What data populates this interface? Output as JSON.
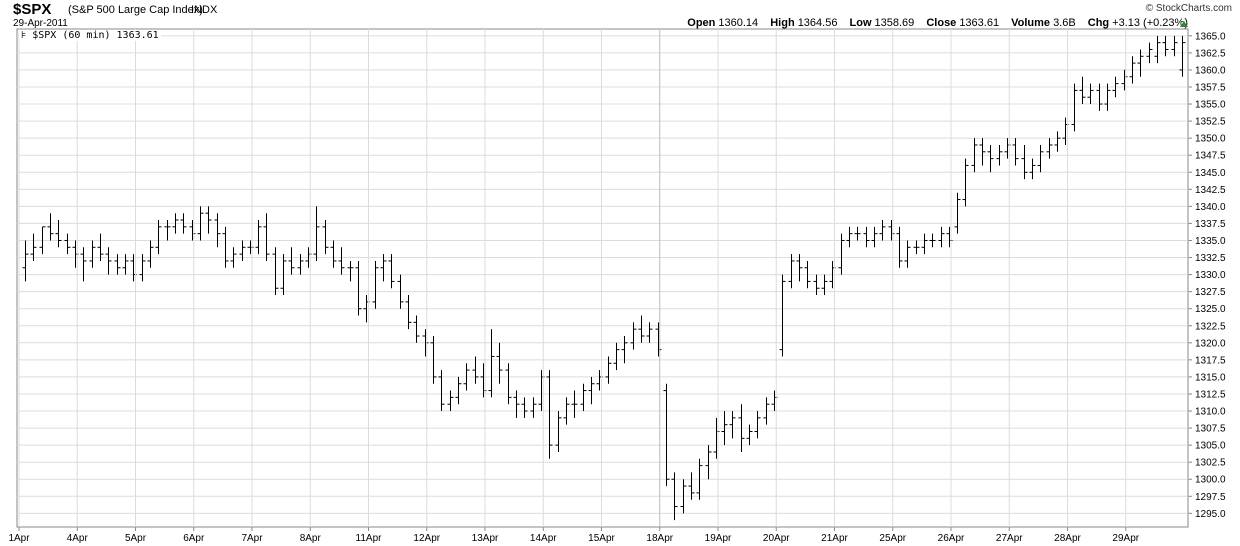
{
  "header": {
    "symbol": "$SPX",
    "name": "(S&P 500 Large Cap Index)",
    "exchange": "INDX",
    "date": "29-Apr-2011",
    "site": "© StockCharts.com"
  },
  "stats": {
    "open_label": "Open",
    "open": "1360.14",
    "high_label": "High",
    "high": "1364.56",
    "low_label": "Low",
    "low": "1358.69",
    "close_label": "Close",
    "close": "1363.61",
    "volume_label": "Volume",
    "volume": "3.6B",
    "chg_label": "Chg",
    "chg": "+3.13 (+0.23%)",
    "chg_direction_color": "#2a8c2a"
  },
  "legend": {
    "icon": "ohlc-bar-icon",
    "text": "$SPX (60 min) 1363.61"
  },
  "chart_data": {
    "type": "ohlc",
    "title": "$SPX (60 min) 1363.61",
    "ylim": [
      1293,
      1366
    ],
    "ytick_step": 2.5,
    "y_axis_side": "right",
    "grid": true,
    "days": [
      {
        "label": "1Apr",
        "bars": [
          [
            1331,
            1335,
            1329,
            1333
          ],
          [
            1333,
            1336,
            1332,
            1334
          ],
          [
            1334,
            1337,
            1333,
            1337
          ],
          [
            1337,
            1339,
            1335,
            1336
          ],
          [
            1336,
            1338,
            1334,
            1335
          ],
          [
            1335,
            1336,
            1333,
            1334
          ],
          [
            1334,
            1335,
            1331,
            1333
          ]
        ]
      },
      {
        "label": "4Apr",
        "bars": [
          [
            1333,
            1334,
            1329,
            1332
          ],
          [
            1332,
            1335,
            1331,
            1334
          ],
          [
            1334,
            1336,
            1332,
            1333
          ],
          [
            1333,
            1334,
            1330,
            1332
          ],
          [
            1332,
            1333,
            1330,
            1331
          ],
          [
            1331,
            1333,
            1330,
            1332
          ],
          [
            1332,
            1333,
            1329,
            1330
          ]
        ]
      },
      {
        "label": "5Apr",
        "bars": [
          [
            1330,
            1333,
            1329,
            1332
          ],
          [
            1332,
            1335,
            1331,
            1334
          ],
          [
            1334,
            1338,
            1333,
            1337
          ],
          [
            1337,
            1338,
            1335,
            1337
          ],
          [
            1337,
            1339,
            1336,
            1338
          ],
          [
            1338,
            1339,
            1336,
            1337
          ],
          [
            1337,
            1338,
            1335,
            1336
          ]
        ]
      },
      {
        "label": "6Apr",
        "bars": [
          [
            1336,
            1340,
            1335,
            1339
          ],
          [
            1339,
            1340,
            1336,
            1338
          ],
          [
            1338,
            1339,
            1334,
            1336
          ],
          [
            1336,
            1337,
            1331,
            1332
          ],
          [
            1332,
            1334,
            1331,
            1333
          ],
          [
            1333,
            1335,
            1332,
            1334
          ],
          [
            1334,
            1335,
            1333,
            1334
          ]
        ]
      },
      {
        "label": "7Apr",
        "bars": [
          [
            1334,
            1338,
            1333,
            1337
          ],
          [
            1337,
            1339,
            1332,
            1333
          ],
          [
            1333,
            1334,
            1327,
            1328
          ],
          [
            1328,
            1333,
            1327,
            1332
          ],
          [
            1332,
            1334,
            1330,
            1331
          ],
          [
            1331,
            1333,
            1330,
            1332
          ],
          [
            1332,
            1334,
            1331,
            1333
          ]
        ]
      },
      {
        "label": "8Apr",
        "bars": [
          [
            1333,
            1340,
            1332,
            1337
          ],
          [
            1337,
            1338,
            1333,
            1334
          ],
          [
            1334,
            1335,
            1331,
            1332
          ],
          [
            1332,
            1334,
            1330,
            1331
          ],
          [
            1331,
            1332,
            1329,
            1331
          ],
          [
            1331,
            1332,
            1324,
            1325
          ],
          [
            1325,
            1327,
            1323,
            1326
          ]
        ]
      },
      {
        "label": "11Apr",
        "bars": [
          [
            1326,
            1332,
            1325,
            1331
          ],
          [
            1331,
            1333,
            1329,
            1332
          ],
          [
            1332,
            1333,
            1328,
            1329
          ],
          [
            1329,
            1330,
            1325,
            1326
          ],
          [
            1326,
            1327,
            1322,
            1323
          ],
          [
            1323,
            1324,
            1320,
            1321
          ],
          [
            1321,
            1322,
            1318,
            1320
          ]
        ]
      },
      {
        "label": "12Apr",
        "bars": [
          [
            1320,
            1321,
            1314,
            1315
          ],
          [
            1315,
            1316,
            1310,
            1311
          ],
          [
            1311,
            1313,
            1310,
            1312
          ],
          [
            1312,
            1315,
            1311,
            1314
          ],
          [
            1314,
            1317,
            1313,
            1316
          ],
          [
            1316,
            1318,
            1314,
            1315
          ],
          [
            1315,
            1317,
            1312,
            1313
          ]
        ]
      },
      {
        "label": "13Apr",
        "bars": [
          [
            1313,
            1322,
            1312,
            1318
          ],
          [
            1318,
            1320,
            1314,
            1316
          ],
          [
            1316,
            1317,
            1311,
            1312
          ],
          [
            1312,
            1313,
            1309,
            1311
          ],
          [
            1311,
            1312,
            1309,
            1310
          ],
          [
            1310,
            1312,
            1309,
            1311
          ],
          [
            1311,
            1316,
            1310,
            1315
          ]
        ]
      },
      {
        "label": "14Apr",
        "bars": [
          [
            1315,
            1316,
            1303,
            1305
          ],
          [
            1305,
            1310,
            1304,
            1309
          ],
          [
            1309,
            1312,
            1308,
            1311
          ],
          [
            1311,
            1313,
            1309,
            1311
          ],
          [
            1311,
            1314,
            1310,
            1313
          ],
          [
            1313,
            1315,
            1311,
            1314
          ],
          [
            1314,
            1316,
            1313,
            1315
          ]
        ]
      },
      {
        "label": "15Apr",
        "bars": [
          [
            1315,
            1318,
            1314,
            1317
          ],
          [
            1317,
            1320,
            1316,
            1319
          ],
          [
            1319,
            1321,
            1317,
            1320
          ],
          [
            1320,
            1323,
            1319,
            1322
          ],
          [
            1322,
            1324,
            1320,
            1321
          ],
          [
            1321,
            1323,
            1320,
            1322
          ],
          [
            1322,
            1323,
            1318,
            1319
          ]
        ]
      },
      {
        "label": "18Apr",
        "bars": [
          [
            1313,
            1314,
            1299,
            1300
          ],
          [
            1300,
            1301,
            1294,
            1296
          ],
          [
            1296,
            1300,
            1295,
            1299
          ],
          [
            1299,
            1301,
            1297,
            1298
          ],
          [
            1298,
            1303,
            1297,
            1302
          ],
          [
            1302,
            1305,
            1300,
            1304
          ],
          [
            1304,
            1309,
            1303,
            1307
          ]
        ]
      },
      {
        "label": "19Apr",
        "bars": [
          [
            1307,
            1310,
            1305,
            1308
          ],
          [
            1308,
            1310,
            1306,
            1309
          ],
          [
            1309,
            1311,
            1304,
            1306
          ],
          [
            1306,
            1308,
            1305,
            1307
          ],
          [
            1307,
            1310,
            1306,
            1309
          ],
          [
            1309,
            1312,
            1308,
            1311
          ],
          [
            1311,
            1313,
            1310,
            1312
          ]
        ]
      },
      {
        "label": "20Apr",
        "bars": [
          [
            1319,
            1330,
            1318,
            1329
          ],
          [
            1329,
            1333,
            1328,
            1332
          ],
          [
            1332,
            1333,
            1329,
            1331
          ],
          [
            1331,
            1332,
            1328,
            1329
          ],
          [
            1329,
            1330,
            1327,
            1328
          ],
          [
            1328,
            1330,
            1327,
            1329
          ],
          [
            1329,
            1332,
            1328,
            1331
          ]
        ]
      },
      {
        "label": "21Apr",
        "bars": [
          [
            1331,
            1336,
            1330,
            1335
          ],
          [
            1335,
            1337,
            1334,
            1336
          ],
          [
            1336,
            1337,
            1335,
            1336
          ],
          [
            1336,
            1337,
            1334,
            1335
          ],
          [
            1335,
            1337,
            1334,
            1336
          ],
          [
            1336,
            1338,
            1335,
            1337
          ],
          [
            1337,
            1338,
            1335,
            1336
          ]
        ]
      },
      {
        "label": "25Apr",
        "bars": [
          [
            1336,
            1337,
            1331,
            1332
          ],
          [
            1332,
            1335,
            1331,
            1334
          ],
          [
            1334,
            1335,
            1333,
            1334
          ],
          [
            1334,
            1336,
            1333,
            1335
          ],
          [
            1335,
            1336,
            1334,
            1335
          ],
          [
            1335,
            1337,
            1334,
            1336
          ],
          [
            1336,
            1337,
            1334,
            1335
          ]
        ]
      },
      {
        "label": "26Apr",
        "bars": [
          [
            1337,
            1342,
            1336,
            1341
          ],
          [
            1341,
            1347,
            1340,
            1346
          ],
          [
            1346,
            1350,
            1345,
            1349
          ],
          [
            1349,
            1350,
            1346,
            1348
          ],
          [
            1348,
            1349,
            1345,
            1347
          ],
          [
            1347,
            1349,
            1346,
            1348
          ],
          [
            1348,
            1350,
            1347,
            1349
          ]
        ]
      },
      {
        "label": "27Apr",
        "bars": [
          [
            1349,
            1350,
            1346,
            1347
          ],
          [
            1347,
            1349,
            1344,
            1345
          ],
          [
            1345,
            1347,
            1344,
            1346
          ],
          [
            1346,
            1349,
            1345,
            1348
          ],
          [
            1348,
            1350,
            1347,
            1349
          ],
          [
            1349,
            1351,
            1348,
            1350
          ],
          [
            1350,
            1353,
            1349,
            1352
          ]
        ]
      },
      {
        "label": "28Apr",
        "bars": [
          [
            1352,
            1358,
            1351,
            1357
          ],
          [
            1357,
            1359,
            1355,
            1356
          ],
          [
            1356,
            1358,
            1355,
            1357
          ],
          [
            1357,
            1358,
            1354,
            1355
          ],
          [
            1355,
            1358,
            1354,
            1357
          ],
          [
            1357,
            1359,
            1356,
            1358
          ],
          [
            1358,
            1360,
            1357,
            1359
          ]
        ]
      },
      {
        "label": "29Apr",
        "bars": [
          [
            1359,
            1362,
            1358,
            1361
          ],
          [
            1361,
            1363,
            1359,
            1362
          ],
          [
            1362,
            1364,
            1361,
            1363
          ],
          [
            1362,
            1365,
            1361,
            1364
          ],
          [
            1364,
            1365,
            1362,
            1363
          ],
          [
            1363,
            1365,
            1362,
            1364
          ],
          [
            1360,
            1365,
            1359,
            1364
          ]
        ]
      }
    ]
  }
}
